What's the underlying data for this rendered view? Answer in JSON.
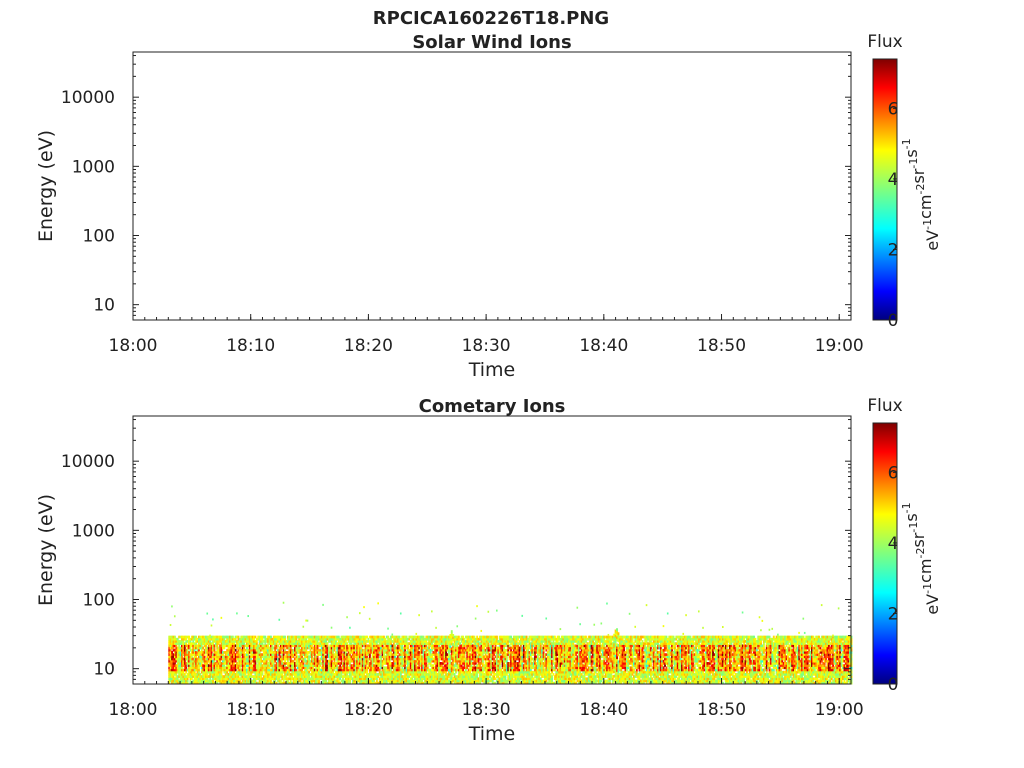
{
  "figure": {
    "title": "RPCICA160226T18.PNG"
  },
  "colors": {
    "frame": "#222222",
    "background": "#ffffff",
    "colormap": [
      "#00007f",
      "#0000ff",
      "#007fff",
      "#00ffff",
      "#7fff7f",
      "#ffff00",
      "#ff7f00",
      "#ff0000",
      "#7f0000"
    ]
  },
  "chart_data": [
    {
      "type": "heatmap",
      "title": "Solar Wind Ions",
      "xlabel": "Time",
      "ylabel": "Energy (eV)",
      "xscale": "time",
      "yscale": "log",
      "xlim": [
        "18:00",
        "19:01"
      ],
      "ylim": [
        6,
        45000
      ],
      "xticks": [
        "18:00",
        "18:10",
        "18:20",
        "18:30",
        "18:40",
        "18:50",
        "19:00"
      ],
      "yticks": [
        "10",
        "100",
        "1000",
        "10000"
      ],
      "colorbar": {
        "label": "Flux",
        "unit_html": "eV<sup>-1</sup>cm<sup>-2</sup>sr<sup>-1</sup>s<sup>-1</sup>",
        "ticks": [
          "0",
          "2",
          "4",
          "6"
        ],
        "range": [
          0,
          7.4
        ]
      },
      "data": "empty"
    },
    {
      "type": "heatmap",
      "title": "Cometary Ions",
      "xlabel": "Time",
      "ylabel": "Energy (eV)",
      "xscale": "time",
      "yscale": "log",
      "xlim": [
        "18:00",
        "19:01"
      ],
      "ylim": [
        6,
        45000
      ],
      "xticks": [
        "18:00",
        "18:10",
        "18:20",
        "18:30",
        "18:40",
        "18:50",
        "19:00"
      ],
      "yticks": [
        "10",
        "100",
        "1000",
        "10000"
      ],
      "colorbar": {
        "label": "Flux",
        "unit_html": "eV<sup>-1</sup>cm<sup>-2</sup>sr<sup>-1</sup>s<sup>-1</sup>",
        "ticks": [
          "0",
          "2",
          "4",
          "6"
        ],
        "range": [
          0,
          7.4
        ]
      },
      "data": {
        "time_start": "18:03",
        "time_end": "19:01",
        "core_energy_range": [
          9,
          22
        ],
        "band_energy_range": [
          6,
          30
        ],
        "peak_flux": 7,
        "sparse_flux_energy_range": [
          30,
          90
        ],
        "enhancements": [
          {
            "time": "18:27",
            "energy_top": 36
          },
          {
            "time": "18:41",
            "energy_top": 40
          },
          {
            "time": "18:43",
            "energy_top": 30
          }
        ]
      }
    }
  ]
}
